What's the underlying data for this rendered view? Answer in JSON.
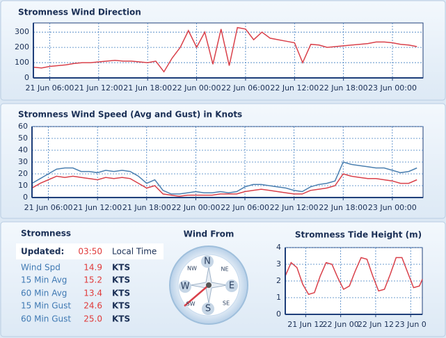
{
  "chart_data": [
    {
      "type": "line",
      "title": "Stromness Wind Direction",
      "x": [
        "21 Jun 04:00",
        "21 Jun 05:00",
        "21 Jun 06:00",
        "21 Jun 07:00",
        "21 Jun 08:00",
        "21 Jun 09:00",
        "21 Jun 10:00",
        "21 Jun 11:00",
        "21 Jun 12:00",
        "21 Jun 13:00",
        "21 Jun 14:00",
        "21 Jun 15:00",
        "21 Jun 16:00",
        "21 Jun 17:00",
        "21 Jun 18:00",
        "21 Jun 19:00",
        "21 Jun 20:00",
        "21 Jun 21:00",
        "21 Jun 22:00",
        "21 Jun 23:00",
        "22 Jun 00:00",
        "22 Jun 01:00",
        "22 Jun 02:00",
        "22 Jun 03:00",
        "22 Jun 04:00",
        "22 Jun 05:00",
        "22 Jun 06:00",
        "22 Jun 07:00",
        "22 Jun 08:00",
        "22 Jun 09:00",
        "22 Jun 10:00",
        "22 Jun 11:00",
        "22 Jun 12:00",
        "22 Jun 13:00",
        "22 Jun 14:00",
        "22 Jun 15:00",
        "22 Jun 16:00",
        "22 Jun 17:00",
        "22 Jun 18:00",
        "22 Jun 19:00",
        "22 Jun 20:00",
        "22 Jun 21:00",
        "22 Jun 22:00",
        "22 Jun 23:00",
        "23 Jun 00:00",
        "23 Jun 01:00",
        "23 Jun 02:00",
        "23 Jun 03:00"
      ],
      "series": [
        {
          "color": "#d9404a",
          "values": [
            70,
            65,
            75,
            80,
            85,
            95,
            100,
            100,
            105,
            110,
            115,
            110,
            110,
            105,
            100,
            110,
            40,
            130,
            200,
            310,
            200,
            300,
            90,
            320,
            80,
            330,
            320,
            250,
            300,
            260,
            250,
            240,
            230,
            100,
            220,
            215,
            200,
            205,
            210,
            215,
            220,
            225,
            235,
            235,
            230,
            220,
            215,
            205
          ]
        }
      ],
      "xlim": [
        "21 Jun 04:00",
        "23 Jun 03:45"
      ],
      "xticks": [
        "21 Jun 06:00",
        "21 Jun 12:00",
        "21 Jun 18:00",
        "22 Jun 00:00",
        "22 Jun 06:00",
        "22 Jun 12:00",
        "22 Jun 18:00",
        "23 Jun 00:00"
      ],
      "ylim": [
        0,
        360
      ],
      "yticks": [
        0,
        100,
        200,
        300
      ],
      "grid": true
    },
    {
      "type": "line",
      "title": "Stromness Wind Speed (Avg and Gust) in Knots",
      "x": [
        "21 Jun 04:00",
        "21 Jun 05:00",
        "21 Jun 06:00",
        "21 Jun 07:00",
        "21 Jun 08:00",
        "21 Jun 09:00",
        "21 Jun 10:00",
        "21 Jun 11:00",
        "21 Jun 12:00",
        "21 Jun 13:00",
        "21 Jun 14:00",
        "21 Jun 15:00",
        "21 Jun 16:00",
        "21 Jun 17:00",
        "21 Jun 18:00",
        "21 Jun 19:00",
        "21 Jun 20:00",
        "21 Jun 21:00",
        "21 Jun 22:00",
        "21 Jun 23:00",
        "22 Jun 00:00",
        "22 Jun 01:00",
        "22 Jun 02:00",
        "22 Jun 03:00",
        "22 Jun 04:00",
        "22 Jun 05:00",
        "22 Jun 06:00",
        "22 Jun 07:00",
        "22 Jun 08:00",
        "22 Jun 09:00",
        "22 Jun 10:00",
        "22 Jun 11:00",
        "22 Jun 12:00",
        "22 Jun 13:00",
        "22 Jun 14:00",
        "22 Jun 15:00",
        "22 Jun 16:00",
        "22 Jun 17:00",
        "22 Jun 18:00",
        "22 Jun 19:00",
        "22 Jun 20:00",
        "22 Jun 21:00",
        "22 Jun 22:00",
        "22 Jun 23:00",
        "23 Jun 00:00",
        "23 Jun 01:00",
        "23 Jun 02:00",
        "23 Jun 03:00"
      ],
      "series": [
        {
          "color": "#4a7fb0",
          "values": [
            12,
            16,
            20,
            24,
            25,
            25,
            22,
            22,
            21,
            23,
            22,
            23,
            22,
            18,
            12,
            15,
            6,
            3,
            3,
            4,
            5,
            4,
            4,
            5,
            4,
            5,
            9,
            11,
            11,
            10,
            9,
            8,
            6,
            5,
            9,
            11,
            12,
            14,
            30,
            28,
            27,
            26,
            25,
            25,
            23,
            21,
            22,
            25
          ]
        },
        {
          "color": "#d9404a",
          "values": [
            8,
            12,
            15,
            18,
            17,
            18,
            17,
            16,
            15,
            17,
            16,
            17,
            16,
            12,
            8,
            10,
            3,
            2,
            1,
            2,
            2,
            2,
            2,
            3,
            3,
            3,
            5,
            6,
            7,
            6,
            5,
            4,
            3,
            3,
            6,
            7,
            8,
            10,
            20,
            18,
            17,
            16,
            16,
            15,
            14,
            12,
            12,
            15
          ]
        }
      ],
      "xlim": [
        "21 Jun 04:00",
        "23 Jun 03:45"
      ],
      "xticks": [
        "21 Jun 06:00",
        "21 Jun 12:00",
        "21 Jun 18:00",
        "22 Jun 00:00",
        "22 Jun 06:00",
        "22 Jun 12:00",
        "22 Jun 18:00",
        "23 Jun 00:00"
      ],
      "ylim": [
        0,
        60
      ],
      "yticks": [
        0,
        10,
        20,
        30,
        40,
        50,
        60
      ],
      "grid": true
    },
    {
      "type": "line",
      "title": "Stromness Tide Height (m)",
      "x": [
        "21 Jun 05:00",
        "21 Jun 07:00",
        "21 Jun 09:00",
        "21 Jun 11:00",
        "21 Jun 13:00",
        "21 Jun 15:00",
        "21 Jun 17:00",
        "21 Jun 19:00",
        "21 Jun 21:00",
        "21 Jun 23:00",
        "22 Jun 01:00",
        "22 Jun 03:00",
        "22 Jun 05:00",
        "22 Jun 07:00",
        "22 Jun 09:00",
        "22 Jun 11:00",
        "22 Jun 13:00",
        "22 Jun 15:00",
        "22 Jun 17:00",
        "22 Jun 19:00",
        "22 Jun 21:00",
        "22 Jun 23:00",
        "23 Jun 01:00",
        "23 Jun 03:00",
        "23 Jun 04:00"
      ],
      "series": [
        {
          "color": "#d9404a",
          "values": [
            2.3,
            3.1,
            2.8,
            1.8,
            1.2,
            1.3,
            2.3,
            3.1,
            3.0,
            2.2,
            1.5,
            1.7,
            2.6,
            3.4,
            3.3,
            2.3,
            1.4,
            1.5,
            2.4,
            3.4,
            3.4,
            2.5,
            1.6,
            1.7,
            2.1
          ]
        }
      ],
      "xlim": [
        "21 Jun 05:00",
        "23 Jun 04:00"
      ],
      "xticks": [
        {
          "value": "21 Jun 12:00",
          "label": "21 Jun 12"
        },
        {
          "value": "22 Jun 00:00",
          "label": "22 Jun 00"
        },
        {
          "value": "22 Jun 12:00",
          "label": "22 Jun 12"
        },
        {
          "value": "23 Jun 00:00",
          "label": "23 Jun 0"
        }
      ],
      "ylim": [
        0,
        4
      ],
      "yticks": [
        0,
        1,
        2,
        3,
        4
      ],
      "grid": true
    }
  ],
  "station": {
    "name": "Stromness",
    "updated_label": "Updated:",
    "updated_time": "03:50",
    "time_zone": "Local Time",
    "rows": [
      [
        "Wind Spd",
        "14.9",
        "KTS"
      ],
      [
        "15 Min Avg",
        "15.2",
        "KTS"
      ],
      [
        "60 Min Avg",
        "13.4",
        "KTS"
      ],
      [
        "15 Min Gust",
        "24.6",
        "KTS"
      ],
      [
        "60 Min Gust",
        "25.0",
        "KTS"
      ]
    ]
  },
  "compass": {
    "title": "Wind From",
    "labels": [
      "N",
      "NE",
      "E",
      "SE",
      "S",
      "SW",
      "W",
      "NW"
    ]
  }
}
